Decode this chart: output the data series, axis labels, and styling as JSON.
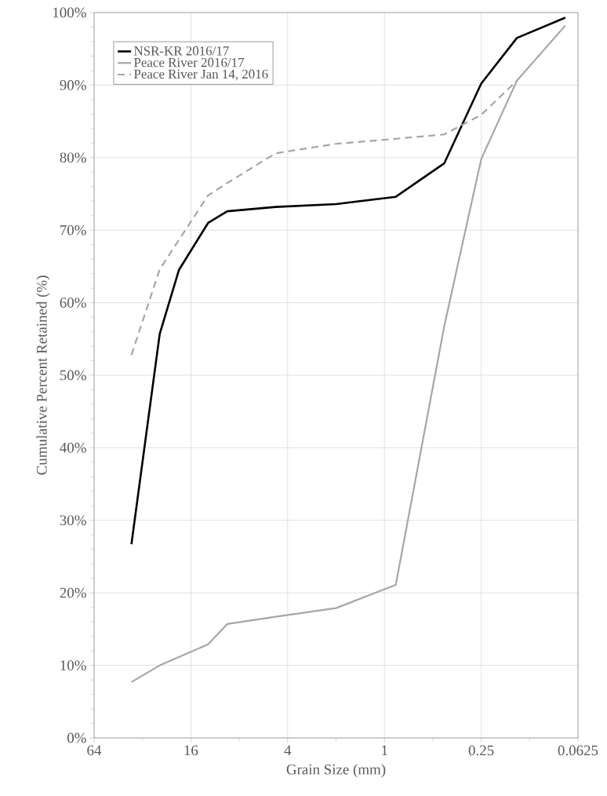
{
  "chart_data": {
    "type": "line",
    "xlabel": "Grain Size (mm)",
    "ylabel": "Cumulative Percent Retained (%)",
    "log": "x",
    "xlim": [
      64,
      0.0625
    ],
    "ylim": [
      0,
      100
    ],
    "xticks": [
      64,
      {
        "value": 32,
        "label": null
      },
      16,
      {
        "value": 8,
        "label": null
      },
      4,
      {
        "value": 2,
        "label": null
      },
      1,
      {
        "value": 0.5,
        "label": null
      },
      0.25,
      {
        "value": 0.125,
        "label": null
      },
      0.0625
    ],
    "yticks": [
      {
        "value": 0,
        "label": "0%"
      },
      {
        "value": 10,
        "label": "10%"
      },
      {
        "value": 20,
        "label": "20%"
      },
      {
        "value": 30,
        "label": "30%"
      },
      {
        "value": 40,
        "label": "40%"
      },
      {
        "value": 50,
        "label": "50%"
      },
      {
        "value": 60,
        "label": "60%"
      },
      {
        "value": 70,
        "label": "70%"
      },
      {
        "value": 80,
        "label": "80%"
      },
      {
        "value": 90,
        "label": "90%"
      },
      {
        "value": 100,
        "label": "100%"
      }
    ],
    "grid": true,
    "legend": "top left",
    "series": [
      {
        "name": "NSR-KR 2016/17",
        "color": "#000000",
        "line_style": "solid",
        "x": [
          37.5,
          25,
          19,
          12.5,
          9.5,
          4.75,
          2,
          0.85,
          0.425,
          0.25,
          0.15,
          0.075
        ],
        "values": [
          26.7,
          55.7,
          64.5,
          71.0,
          72.6,
          73.2,
          73.6,
          74.6,
          79.2,
          90.2,
          96.5,
          99.3
        ]
      },
      {
        "name": "Peace River 2016/17",
        "color": "#a6a6a6",
        "line_style": "solid",
        "x": [
          37.5,
          25,
          12.5,
          9.5,
          4.75,
          2,
          0.85,
          0.425,
          0.25,
          0.15,
          0.075
        ],
        "values": [
          7.7,
          10.0,
          12.9,
          15.7,
          16.7,
          17.9,
          21.1,
          56.7,
          79.8,
          90.6,
          98.2
        ]
      },
      {
        "name": "Peace River Jan 14, 2016",
        "color": "#a6a6a6",
        "line_style": "dashed",
        "x": [
          37.5,
          25,
          12.5,
          9.5,
          4.75,
          2,
          0.85,
          0.425,
          0.25,
          0.15
        ],
        "values": [
          52.8,
          64.6,
          74.8,
          76.5,
          80.6,
          81.9,
          82.6,
          83.2,
          85.9,
          90.6
        ]
      }
    ]
  }
}
